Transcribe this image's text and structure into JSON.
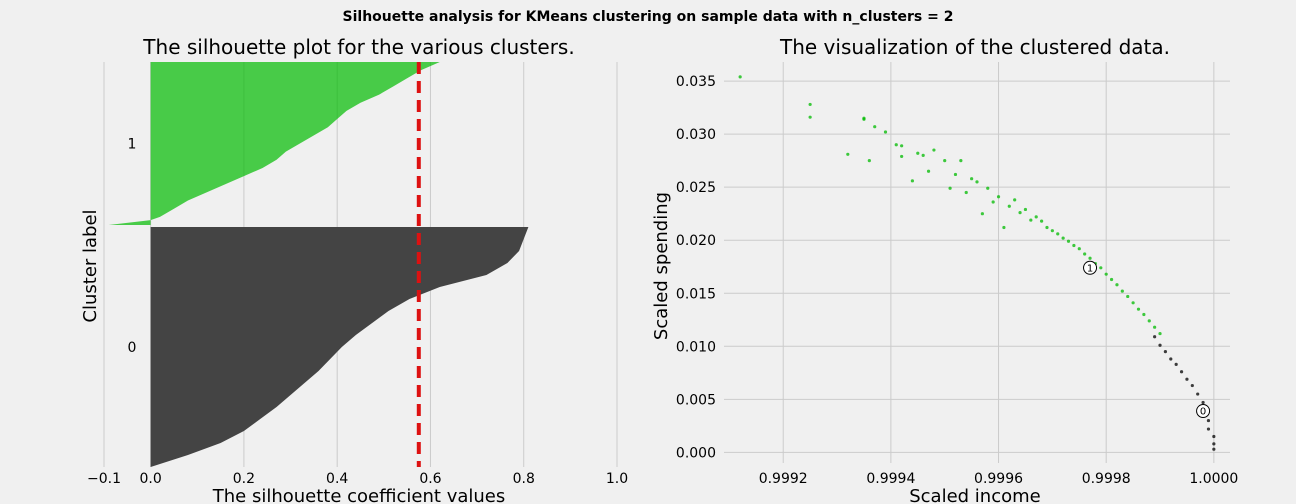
{
  "figure": {
    "suptitle": "Silhouette analysis for KMeans clustering on sample data with n_clusters = 2",
    "background": "#f0f0f0"
  },
  "chart_data": [
    {
      "type": "area",
      "title": "The silhouette plot for the various clusters.",
      "xlabel": "The silhouette coefficient values",
      "ylabel": "Cluster label",
      "xlim": [
        -0.1,
        1.0
      ],
      "xticks": [
        "−0.1",
        "0.0",
        "0.2",
        "0.4",
        "0.6",
        "0.8",
        "1.0"
      ],
      "xtick_values": [
        -0.1,
        0.0,
        0.2,
        0.4,
        0.6,
        0.8,
        1.0
      ],
      "yticks": [
        "0",
        "1"
      ],
      "grid": "x",
      "average_silhouette": 0.575,
      "average_line_color": "#dd1111",
      "clusters": [
        {
          "label": "0",
          "color": "#444444",
          "sorted_values_profile": [
            [
              0.0,
              0.0
            ],
            [
              0.05,
              0.08
            ],
            [
              0.1,
              0.15
            ],
            [
              0.15,
              0.2
            ],
            [
              0.2,
              0.235
            ],
            [
              0.25,
              0.27
            ],
            [
              0.3,
              0.3
            ],
            [
              0.35,
              0.33
            ],
            [
              0.4,
              0.36
            ],
            [
              0.45,
              0.385
            ],
            [
              0.5,
              0.41
            ],
            [
              0.55,
              0.44
            ],
            [
              0.6,
              0.475
            ],
            [
              0.65,
              0.51
            ],
            [
              0.7,
              0.555
            ],
            [
              0.75,
              0.62
            ],
            [
              0.8,
              0.72
            ],
            [
              0.85,
              0.765
            ],
            [
              0.9,
              0.79
            ],
            [
              0.95,
              0.8
            ],
            [
              1.0,
              0.81
            ]
          ]
        },
        {
          "label": "1",
          "color": "#00bb00",
          "sorted_values_profile": [
            [
              0.0,
              -0.09
            ],
            [
              0.03,
              0.0
            ],
            [
              0.05,
              0.02
            ],
            [
              0.1,
              0.05
            ],
            [
              0.15,
              0.08
            ],
            [
              0.2,
              0.12
            ],
            [
              0.25,
              0.16
            ],
            [
              0.3,
              0.2
            ],
            [
              0.35,
              0.24
            ],
            [
              0.4,
              0.27
            ],
            [
              0.45,
              0.29
            ],
            [
              0.5,
              0.32
            ],
            [
              0.55,
              0.35
            ],
            [
              0.6,
              0.38
            ],
            [
              0.65,
              0.4
            ],
            [
              0.7,
              0.42
            ],
            [
              0.75,
              0.45
            ],
            [
              0.8,
              0.49
            ],
            [
              0.85,
              0.52
            ],
            [
              0.9,
              0.55
            ],
            [
              0.95,
              0.58
            ],
            [
              1.0,
              0.62
            ]
          ]
        }
      ]
    },
    {
      "type": "scatter",
      "title": "The visualization of the clustered data.",
      "xlabel": "Scaled income",
      "ylabel": "Scaled spending",
      "xlim": [
        0.99909,
        1.00003
      ],
      "ylim": [
        -0.001,
        0.0368
      ],
      "xticks": [
        "0.9992",
        "0.9994",
        "0.9996",
        "0.9998",
        "1.0000"
      ],
      "xtick_values": [
        0.9992,
        0.9994,
        0.9996,
        0.9998,
        1.0
      ],
      "yticks": [
        "0.000",
        "0.005",
        "0.010",
        "0.015",
        "0.020",
        "0.025",
        "0.030",
        "0.035"
      ],
      "ytick_values": [
        0.0,
        0.005,
        0.01,
        0.015,
        0.02,
        0.025,
        0.03,
        0.035
      ],
      "grid": "both",
      "series": [
        {
          "cluster": "1",
          "color": "#00bb00",
          "points": [
            [
              0.99912,
              0.0354
            ],
            [
              0.99925,
              0.0328
            ],
            [
              0.99925,
              0.0316
            ],
            [
              0.99932,
              0.0281
            ],
            [
              0.99935,
              0.0315
            ],
            [
              0.99935,
              0.0314
            ],
            [
              0.99936,
              0.0275
            ],
            [
              0.99937,
              0.0307
            ],
            [
              0.99939,
              0.0302
            ],
            [
              0.99941,
              0.029
            ],
            [
              0.99942,
              0.0289
            ],
            [
              0.99942,
              0.0279
            ],
            [
              0.99944,
              0.0256
            ],
            [
              0.99945,
              0.0282
            ],
            [
              0.99946,
              0.028
            ],
            [
              0.99947,
              0.0265
            ],
            [
              0.99948,
              0.0285
            ],
            [
              0.9995,
              0.0275
            ],
            [
              0.99951,
              0.0249
            ],
            [
              0.99952,
              0.0262
            ],
            [
              0.99953,
              0.0275
            ],
            [
              0.99954,
              0.0245
            ],
            [
              0.99955,
              0.0258
            ],
            [
              0.99956,
              0.0255
            ],
            [
              0.99957,
              0.0225
            ],
            [
              0.99958,
              0.0249
            ],
            [
              0.99959,
              0.0236
            ],
            [
              0.9996,
              0.0241
            ],
            [
              0.99961,
              0.0212
            ],
            [
              0.99962,
              0.0232
            ],
            [
              0.99963,
              0.0238
            ],
            [
              0.99964,
              0.0226
            ],
            [
              0.99965,
              0.0229
            ],
            [
              0.99966,
              0.0219
            ],
            [
              0.99967,
              0.0222
            ],
            [
              0.99968,
              0.0218
            ],
            [
              0.99969,
              0.0212
            ],
            [
              0.9997,
              0.0209
            ],
            [
              0.99971,
              0.0206
            ],
            [
              0.99972,
              0.0202
            ],
            [
              0.99973,
              0.0199
            ],
            [
              0.99974,
              0.0195
            ],
            [
              0.99975,
              0.0192
            ],
            [
              0.99976,
              0.0187
            ],
            [
              0.99977,
              0.0183
            ],
            [
              0.99978,
              0.0178
            ],
            [
              0.99979,
              0.0174
            ],
            [
              0.9998,
              0.0168
            ],
            [
              0.99981,
              0.0163
            ],
            [
              0.99982,
              0.0158
            ],
            [
              0.99983,
              0.0152
            ],
            [
              0.99984,
              0.0147
            ],
            [
              0.99985,
              0.0141
            ],
            [
              0.99986,
              0.0135
            ],
            [
              0.99987,
              0.013
            ],
            [
              0.99988,
              0.0124
            ],
            [
              0.99989,
              0.0118
            ],
            [
              0.9999,
              0.0112
            ]
          ]
        },
        {
          "cluster": "0",
          "color": "#000000",
          "points": [
            [
              0.99989,
              0.0109
            ],
            [
              0.9999,
              0.0101
            ],
            [
              0.99991,
              0.0095
            ],
            [
              0.99992,
              0.0088
            ],
            [
              0.99993,
              0.0083
            ],
            [
              0.99994,
              0.0076
            ],
            [
              0.99995,
              0.0069
            ],
            [
              0.99996,
              0.0063
            ],
            [
              0.99997,
              0.0055
            ],
            [
              0.99998,
              0.0047
            ],
            [
              0.99998,
              0.0038
            ],
            [
              0.99999,
              0.003
            ],
            [
              0.99999,
              0.0022
            ],
            [
              1.0,
              0.0015
            ],
            [
              1.0,
              0.0008
            ],
            [
              1.0,
              0.0003
            ]
          ]
        }
      ],
      "centers": [
        {
          "label": "0",
          "x": 0.99998,
          "y": 0.0039
        },
        {
          "label": "1",
          "x": 0.99977,
          "y": 0.0174
        }
      ]
    }
  ]
}
